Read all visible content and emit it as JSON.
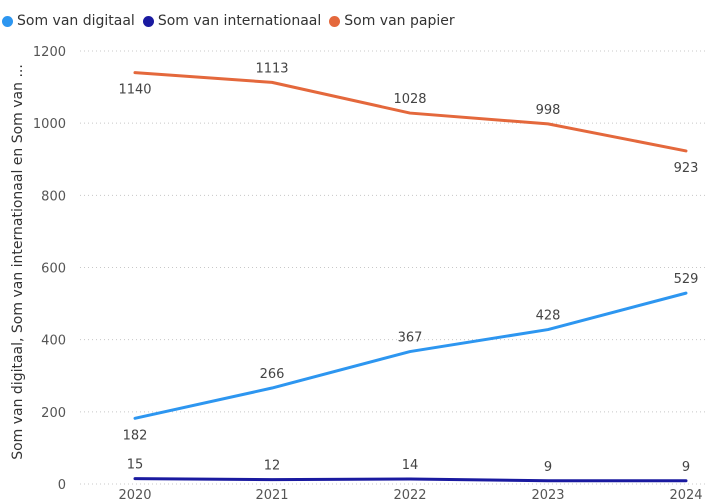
{
  "chart_data": {
    "type": "line",
    "x": [
      "2020",
      "2021",
      "2022",
      "2023",
      "2024"
    ],
    "ylabel": "Som van digitaal, Som van internationaal en Som van ...",
    "ylim": [
      0,
      1200
    ],
    "yticks": [
      "0",
      "200",
      "400",
      "600",
      "800",
      "1000",
      "1200"
    ],
    "grid": true,
    "legend": "top-left",
    "series": [
      {
        "name": "Som van digitaal",
        "color": "#2d96f0",
        "values": [
          182,
          266,
          367,
          428,
          529
        ],
        "labels": [
          "182",
          "266",
          "367",
          "428",
          "529"
        ],
        "label_pos": [
          "below",
          "above",
          "above",
          "above",
          "above"
        ]
      },
      {
        "name": "Som van internationaal",
        "color": "#1a1aa0",
        "values": [
          15,
          12,
          14,
          9,
          9
        ],
        "labels": [
          "15",
          "12",
          "14",
          "9",
          "9"
        ],
        "label_pos": [
          "above",
          "above",
          "above",
          "above",
          "above"
        ]
      },
      {
        "name": "Som van papier",
        "color": "#e4683c",
        "values": [
          1140,
          1113,
          1028,
          998,
          923
        ],
        "labels": [
          "1140",
          "1113",
          "1028",
          "998",
          "923"
        ],
        "label_pos": [
          "below",
          "above",
          "above",
          "above",
          "below"
        ]
      }
    ]
  }
}
